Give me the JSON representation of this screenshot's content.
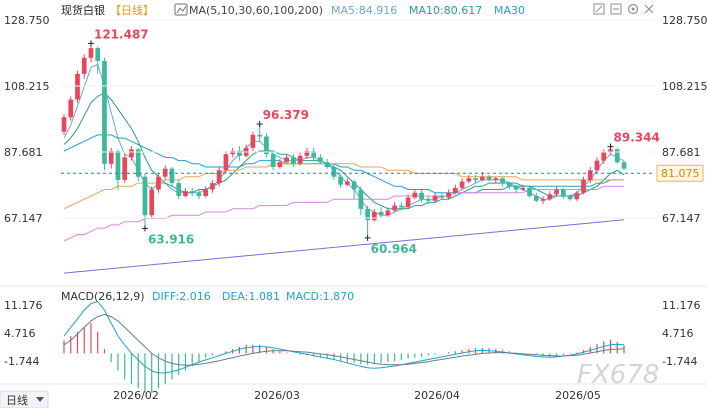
{
  "header": {
    "symbol": "现货白银",
    "period": "【日线】",
    "ma_label": "MA(5,10,30,60,100,200)",
    "ma5": "MA5:84.916",
    "ma10": "MA10:80.617",
    "ma30": "MA30"
  },
  "macd_header": {
    "label": "MACD(26,12,9)",
    "diff": "DIFF:2.016",
    "dea": "DEA:1.081",
    "macd": "MACD:1.870"
  },
  "period_button": "日线",
  "watermark": "FX678",
  "icons": [
    "expand-icon",
    "collapse-icon",
    "gear-icon",
    "close-icon"
  ],
  "colors": {
    "up": "#e8475b",
    "down": "#3cb89a",
    "ma5": "#6aa8d8",
    "ma10": "#2a9d8f",
    "ma30": "#1fa3c9",
    "ma60": "#e8a64f",
    "ma100": "#d48be0",
    "ma200": "#7a6fd6",
    "price_line": "#1e7fc8"
  },
  "chart_data": {
    "type": "candlestick",
    "price_axis": {
      "ticks": [
        "128.750",
        "108.215",
        "87.681",
        "67.147"
      ],
      "ylim": [
        50,
        128.75
      ]
    },
    "x_labels": [
      "2026/02",
      "2026/03",
      "2026/04",
      "2026/05"
    ],
    "current_price": "81.075",
    "annotations": [
      {
        "text": "121.487",
        "kind": "high"
      },
      {
        "text": "96.379",
        "kind": "high"
      },
      {
        "text": "89.344",
        "kind": "high"
      },
      {
        "text": "63.916",
        "kind": "low"
      },
      {
        "text": "60.964",
        "kind": "low"
      }
    ],
    "candles": [
      [
        94.0,
        98.5,
        93.0,
        99.5
      ],
      [
        98.5,
        104.0,
        97.5,
        105.0
      ],
      [
        104.0,
        112.0,
        103.0,
        113.0
      ],
      [
        112.0,
        117.0,
        110.5,
        118.0
      ],
      [
        117.0,
        120.0,
        115.5,
        121.487
      ],
      [
        120.0,
        116.0,
        112.0,
        120.5
      ],
      [
        116.0,
        84.0,
        82.0,
        117.0
      ],
      [
        84.0,
        88.0,
        82.5,
        89.0
      ],
      [
        88.0,
        79.0,
        76.0,
        88.5
      ],
      [
        79.0,
        86.0,
        78.0,
        87.0
      ],
      [
        86.0,
        88.5,
        85.0,
        89.5
      ],
      [
        88.5,
        80.0,
        78.5,
        89.0
      ],
      [
        80.0,
        68.0,
        63.916,
        81.0
      ],
      [
        68.0,
        76.0,
        67.0,
        77.0
      ],
      [
        76.0,
        80.0,
        75.0,
        81.0
      ],
      [
        80.0,
        82.5,
        79.0,
        83.5
      ],
      [
        82.5,
        78.0,
        77.0,
        83.0
      ],
      [
        78.0,
        74.0,
        73.0,
        79.0
      ],
      [
        74.0,
        75.5,
        73.5,
        76.5
      ],
      [
        75.5,
        75.0,
        74.0,
        76.5
      ],
      [
        75.0,
        74.0,
        73.0,
        76.0
      ],
      [
        74.0,
        76.0,
        73.5,
        77.0
      ],
      [
        76.0,
        78.0,
        75.0,
        79.0
      ],
      [
        78.0,
        82.0,
        77.0,
        83.0
      ],
      [
        82.0,
        87.0,
        81.0,
        88.0
      ],
      [
        87.0,
        88.0,
        86.0,
        89.0
      ],
      [
        88.0,
        86.5,
        85.0,
        89.5
      ],
      [
        86.5,
        89.0,
        86.0,
        90.0
      ],
      [
        89.0,
        93.0,
        88.0,
        94.0
      ],
      [
        93.0,
        92.5,
        91.0,
        96.379
      ],
      [
        92.5,
        87.0,
        86.0,
        93.5
      ],
      [
        87.0,
        83.0,
        82.0,
        88.0
      ],
      [
        83.0,
        84.5,
        82.5,
        85.5
      ],
      [
        84.5,
        86.0,
        84.0,
        87.0
      ],
      [
        86.0,
        84.0,
        83.0,
        87.0
      ],
      [
        84.0,
        86.5,
        83.5,
        87.5
      ],
      [
        86.5,
        88.0,
        85.5,
        89.0
      ],
      [
        88.0,
        86.0,
        85.0,
        89.0
      ],
      [
        86.0,
        84.5,
        84.0,
        87.0
      ],
      [
        84.5,
        83.0,
        82.5,
        85.5
      ],
      [
        83.0,
        80.0,
        79.0,
        84.0
      ],
      [
        80.0,
        77.5,
        76.5,
        81.0
      ],
      [
        77.5,
        78.5,
        77.0,
        79.5
      ],
      [
        78.5,
        76.0,
        73.0,
        79.0
      ],
      [
        76.0,
        70.0,
        68.0,
        77.0
      ],
      [
        70.0,
        66.5,
        60.964,
        71.0
      ],
      [
        66.5,
        69.0,
        66.0,
        70.0
      ],
      [
        69.0,
        68.0,
        67.0,
        70.5
      ],
      [
        68.0,
        69.5,
        67.5,
        70.5
      ],
      [
        69.5,
        71.0,
        69.0,
        72.0
      ],
      [
        71.0,
        70.5,
        69.5,
        72.0
      ],
      [
        70.5,
        73.5,
        70.0,
        74.5
      ],
      [
        73.5,
        75.0,
        73.0,
        76.0
      ],
      [
        75.0,
        73.0,
        72.0,
        76.0
      ],
      [
        73.0,
        72.5,
        71.5,
        74.0
      ],
      [
        72.5,
        74.0,
        72.0,
        75.0
      ],
      [
        74.0,
        73.5,
        73.0,
        75.0
      ],
      [
        73.5,
        75.0,
        73.0,
        76.0
      ],
      [
        75.0,
        76.5,
        74.5,
        77.5
      ],
      [
        76.5,
        78.5,
        76.0,
        79.5
      ],
      [
        78.5,
        79.5,
        78.0,
        80.5
      ],
      [
        79.5,
        79.0,
        78.0,
        80.5
      ],
      [
        79.0,
        80.0,
        78.5,
        81.5
      ],
      [
        80.0,
        79.0,
        78.5,
        80.5
      ],
      [
        79.0,
        79.5,
        78.0,
        80.0
      ],
      [
        79.5,
        78.0,
        77.0,
        80.0
      ],
      [
        78.0,
        77.0,
        76.0,
        78.5
      ],
      [
        77.0,
        76.0,
        75.0,
        77.5
      ],
      [
        76.0,
        76.5,
        75.5,
        77.5
      ],
      [
        76.5,
        74.0,
        73.5,
        77.0
      ],
      [
        74.0,
        72.5,
        72.0,
        75.0
      ],
      [
        72.5,
        73.0,
        71.5,
        74.0
      ],
      [
        73.0,
        74.5,
        72.5,
        75.5
      ],
      [
        74.5,
        76.0,
        74.0,
        77.0
      ],
      [
        76.0,
        74.0,
        73.0,
        76.5
      ],
      [
        74.0,
        73.0,
        72.5,
        74.5
      ],
      [
        73.0,
        75.0,
        72.5,
        75.5
      ],
      [
        75.0,
        79.0,
        74.5,
        80.0
      ],
      [
        79.0,
        82.0,
        78.0,
        83.0
      ],
      [
        82.0,
        85.0,
        81.0,
        86.0
      ],
      [
        85.0,
        87.5,
        84.0,
        88.5
      ],
      [
        87.5,
        88.5,
        87.0,
        89.344
      ],
      [
        88.5,
        84.5,
        84.0,
        89.0
      ],
      [
        84.5,
        82.5,
        82.0,
        85.0
      ]
    ],
    "ma_series": {
      "ma5": [
        92,
        96,
        102,
        108,
        114,
        115,
        108,
        100,
        92,
        87,
        86,
        82,
        78,
        76,
        78,
        78,
        76,
        75,
        75,
        75,
        75,
        76,
        77,
        79,
        82,
        85,
        87,
        89,
        91,
        91,
        89,
        87,
        86,
        85,
        85,
        85,
        86,
        86,
        85,
        84,
        82,
        80,
        78,
        76,
        73,
        70,
        69,
        68,
        68,
        69,
        70,
        71,
        72,
        73,
        73,
        73,
        74,
        74,
        75,
        76,
        77,
        78,
        79,
        79,
        79,
        79,
        78,
        77,
        76,
        75,
        74,
        73,
        73,
        74,
        74,
        74,
        75,
        77,
        79,
        82,
        85,
        87,
        86,
        84.9
      ],
      "ma10": [
        90,
        92,
        95,
        99,
        103,
        105,
        106,
        104,
        101,
        98,
        95,
        91,
        86,
        82,
        80,
        78,
        77,
        76,
        75,
        75,
        76,
        76,
        77,
        78,
        79,
        81,
        83,
        85,
        87,
        88,
        88,
        88,
        87,
        87,
        86,
        85,
        85,
        85,
        85,
        84,
        83,
        82,
        80,
        78,
        76,
        74,
        72,
        71,
        70,
        70,
        70,
        70,
        71,
        71,
        72,
        72,
        73,
        73,
        74,
        75,
        76,
        77,
        77,
        78,
        78,
        78,
        78,
        78,
        77,
        77,
        76,
        75,
        74,
        74,
        74,
        74,
        74,
        75,
        76,
        77,
        79,
        81,
        82,
        80.6
      ],
      "ma30": [
        88,
        89,
        90,
        91,
        92,
        93,
        93,
        93,
        92,
        92,
        91,
        90,
        89,
        88,
        87,
        86,
        86,
        85,
        85,
        84,
        84,
        83,
        83,
        83,
        83,
        83,
        83,
        84,
        84,
        85,
        85,
        85,
        85,
        84,
        84,
        84,
        84,
        84,
        84,
        84,
        84,
        83,
        83,
        82,
        82,
        81,
        80,
        79,
        78,
        77,
        77,
        76,
        76,
        76,
        76,
        75,
        75,
        75,
        75,
        75,
        75,
        75,
        76,
        76,
        76,
        76,
        77,
        77,
        77,
        77,
        77,
        77,
        77,
        77,
        77,
        77,
        77,
        77,
        77,
        78,
        78,
        79,
        79,
        79
      ],
      "ma60": [
        70,
        71,
        72,
        73,
        74,
        75,
        76,
        76,
        77,
        77,
        77,
        78,
        78,
        78,
        78,
        79,
        79,
        79,
        80,
        80,
        80,
        81,
        81,
        81,
        82,
        82,
        82,
        83,
        83,
        83,
        83,
        84,
        84,
        84,
        84,
        84,
        84,
        84,
        84,
        84,
        84,
        84,
        84,
        84,
        83,
        83,
        83,
        83,
        82,
        82,
        82,
        82,
        81,
        81,
        81,
        81,
        81,
        81,
        81,
        80,
        80,
        80,
        80,
        80,
        80,
        80,
        80,
        80,
        79,
        79,
        79,
        79,
        79,
        79,
        79,
        79,
        79,
        79,
        79,
        79,
        79,
        79,
        79,
        79
      ],
      "ma100": [
        60,
        61,
        62,
        62,
        63,
        64,
        64,
        65,
        65,
        66,
        66,
        66,
        67,
        67,
        67,
        67,
        68,
        68,
        68,
        68,
        68,
        69,
        69,
        69,
        69,
        70,
        70,
        70,
        70,
        71,
        71,
        71,
        71,
        71,
        72,
        72,
        72,
        72,
        72,
        72,
        73,
        73,
        73,
        73,
        73,
        73,
        73,
        73,
        73,
        74,
        74,
        74,
        74,
        74,
        74,
        74,
        74,
        74,
        75,
        75,
        75,
        75,
        75,
        75,
        75,
        75,
        75,
        75,
        75,
        76,
        76,
        76,
        76,
        76,
        76,
        76,
        76,
        76,
        76,
        76,
        77,
        77,
        77,
        77
      ],
      "ma200": [
        50,
        50.2,
        50.4,
        50.6,
        50.8,
        51,
        51.2,
        51.4,
        51.6,
        51.8,
        52,
        52.2,
        52.4,
        52.6,
        52.8,
        53,
        53.2,
        53.4,
        53.6,
        53.8,
        54,
        54.2,
        54.4,
        54.6,
        54.8,
        55,
        55.2,
        55.4,
        55.6,
        55.8,
        56,
        56.2,
        56.4,
        56.6,
        56.8,
        57,
        57.2,
        57.4,
        57.6,
        57.8,
        58,
        58.2,
        58.4,
        58.6,
        58.8,
        59,
        59.2,
        59.4,
        59.6,
        59.8,
        60,
        60.2,
        60.4,
        60.6,
        60.8,
        61,
        61.2,
        61.4,
        61.6,
        61.8,
        62,
        62.2,
        62.4,
        62.6,
        62.8,
        63,
        63.2,
        63.4,
        63.6,
        63.8,
        64,
        64.2,
        64.4,
        64.6,
        64.8,
        65,
        65.2,
        65.4,
        65.6,
        65.8,
        66,
        66.2,
        66.4,
        66.6
      ]
    },
    "macd": {
      "axis_ticks": [
        "11.176",
        "4.716",
        "-1.744"
      ],
      "ylim": [
        -7,
        14
      ],
      "hist": [
        3,
        4,
        5,
        6,
        7,
        5,
        1,
        -2,
        -4,
        -6,
        -7,
        -8,
        -9,
        -9,
        -8,
        -7,
        -6,
        -5,
        -4,
        -3,
        -2,
        -1,
        -0.5,
        0,
        0.5,
        1,
        1.5,
        2,
        2,
        2,
        1.5,
        1,
        0.5,
        0.2,
        0,
        -0.3,
        -0.5,
        -0.7,
        -1,
        -1.2,
        -1.5,
        -1.8,
        -2,
        -2.2,
        -2.5,
        -2.6,
        -2.5,
        -2.2,
        -2,
        -1.8,
        -1.5,
        -1.2,
        -1,
        -0.8,
        -0.5,
        -0.3,
        0,
        0.3,
        0.5,
        0.8,
        1,
        1.2,
        1.3,
        1.2,
        1,
        0.8,
        0.5,
        0.2,
        0,
        -0.2,
        -0.4,
        -0.6,
        -0.8,
        -0.6,
        -0.4,
        -0.2,
        0.2,
        0.8,
        1.5,
        2.2,
        2.8,
        3.2,
        2.6,
        1.87
      ],
      "diff": [
        4,
        6,
        8,
        10,
        11.5,
        12,
        10,
        7,
        4,
        2,
        0,
        -1.5,
        -3,
        -4,
        -4.5,
        -4.5,
        -4.2,
        -3.8,
        -3.2,
        -2.6,
        -2,
        -1.5,
        -1,
        -0.5,
        0,
        0.5,
        1,
        1.3,
        1.5,
        1.6,
        1.5,
        1.3,
        1,
        0.7,
        0.4,
        0.1,
        -0.2,
        -0.5,
        -0.8,
        -1.1,
        -1.4,
        -1.8,
        -2.2,
        -2.6,
        -3,
        -3.3,
        -3.4,
        -3.3,
        -3.1,
        -2.9,
        -2.6,
        -2.3,
        -2,
        -1.7,
        -1.4,
        -1.1,
        -0.8,
        -0.5,
        -0.2,
        0.1,
        0.4,
        0.6,
        0.7,
        0.6,
        0.5,
        0.3,
        0.1,
        -0.1,
        -0.3,
        -0.5,
        -0.7,
        -0.8,
        -0.9,
        -0.8,
        -0.6,
        -0.4,
        -0.1,
        0.3,
        0.7,
        1.2,
        1.6,
        2,
        2.1,
        2.016
      ],
      "dea": [
        2,
        3,
        4.5,
        6,
        7.5,
        8.5,
        9,
        8.5,
        7.5,
        6,
        4.5,
        3,
        1.5,
        0,
        -1,
        -1.8,
        -2.3,
        -2.6,
        -2.7,
        -2.7,
        -2.5,
        -2.3,
        -2,
        -1.7,
        -1.3,
        -1,
        -0.6,
        -0.3,
        0,
        0.3,
        0.5,
        0.6,
        0.6,
        0.6,
        0.5,
        0.4,
        0.3,
        0.1,
        -0.1,
        -0.3,
        -0.5,
        -0.8,
        -1.1,
        -1.4,
        -1.7,
        -2,
        -2.3,
        -2.5,
        -2.6,
        -2.6,
        -2.6,
        -2.5,
        -2.3,
        -2.1,
        -1.9,
        -1.6,
        -1.4,
        -1.1,
        -0.9,
        -0.6,
        -0.4,
        -0.2,
        0,
        0.1,
        0.2,
        0.2,
        0.1,
        0,
        -0.1,
        -0.2,
        -0.3,
        -0.4,
        -0.5,
        -0.6,
        -0.6,
        -0.5,
        -0.4,
        -0.2,
        0.1,
        0.4,
        0.7,
        0.9,
        1.0,
        1.081
      ]
    }
  }
}
